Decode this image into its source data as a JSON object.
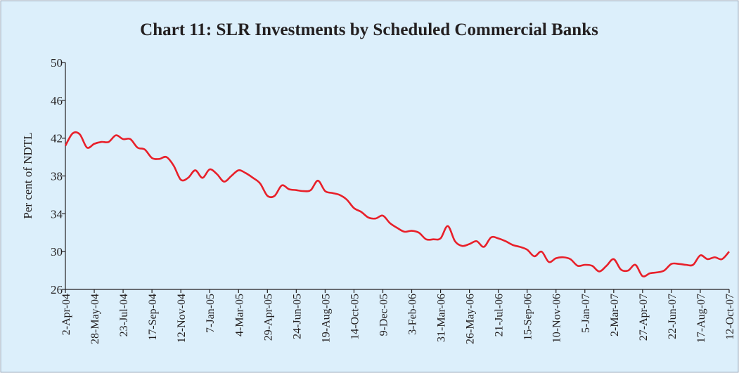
{
  "chart_data": {
    "type": "line",
    "title": "Chart 11: SLR Investments by Scheduled Commercial Banks",
    "y_label": "Per cent of NDTL",
    "categories": [
      "2-Apr-04",
      null,
      null,
      null,
      "28-May-04",
      null,
      null,
      null,
      "23-Jul-04",
      null,
      null,
      null,
      "17-Sep-04",
      null,
      null,
      null,
      "12-Nov-04",
      null,
      null,
      null,
      "7-Jan-05",
      null,
      null,
      null,
      "4-Mar-05",
      null,
      null,
      null,
      "29-Apr-05",
      null,
      null,
      null,
      "24-Jun-05",
      null,
      null,
      null,
      "19-Aug-05",
      null,
      null,
      null,
      "14-Oct-05",
      null,
      null,
      null,
      "9-Dec-05",
      null,
      null,
      null,
      "3-Feb-06",
      null,
      null,
      null,
      "31-Mar-06",
      null,
      null,
      null,
      "26-May-06",
      null,
      null,
      null,
      "21-Jul-06",
      null,
      null,
      null,
      "15-Sep-06",
      null,
      null,
      null,
      "10-Nov-06",
      null,
      null,
      null,
      "5-Jan-07",
      null,
      null,
      null,
      "2-Mar-07",
      null,
      null,
      null,
      "27-Apr-07",
      null,
      null,
      null,
      "22-Jun-07",
      null,
      null,
      null,
      "17-Aug-07",
      null,
      null,
      null,
      "12-Oct-07"
    ],
    "series": [
      {
        "name": "SLR Investments",
        "color": "#e8202a",
        "values": [
          41.2,
          42.5,
          42.4,
          41.0,
          41.4,
          41.6,
          41.6,
          42.3,
          41.9,
          41.9,
          41.0,
          40.8,
          39.9,
          39.8,
          40.0,
          39.1,
          37.6,
          37.8,
          38.6,
          37.8,
          38.7,
          38.2,
          37.4,
          38.0,
          38.6,
          38.3,
          37.8,
          37.2,
          35.9,
          35.9,
          37.0,
          36.6,
          36.5,
          36.4,
          36.5,
          37.5,
          36.4,
          36.2,
          36.0,
          35.5,
          34.6,
          34.2,
          33.6,
          33.5,
          33.8,
          33.0,
          32.5,
          32.1,
          32.2,
          32.0,
          31.3,
          31.3,
          31.4,
          32.7,
          31.1,
          30.6,
          30.8,
          31.1,
          30.5,
          31.5,
          31.4,
          31.1,
          30.7,
          30.5,
          30.2,
          29.5,
          30.0,
          28.9,
          29.3,
          29.4,
          29.2,
          28.5,
          28.6,
          28.5,
          27.9,
          28.5,
          29.2,
          28.1,
          28.0,
          28.6,
          27.4,
          27.7,
          27.8,
          28.0,
          28.7,
          28.7,
          28.6,
          28.6,
          29.6,
          29.2,
          29.4,
          29.2,
          30.0
        ]
      }
    ],
    "ylim": [
      26,
      50
    ],
    "yticks": [
      26,
      30,
      34,
      38,
      42,
      46,
      50
    ],
    "grid": false
  }
}
